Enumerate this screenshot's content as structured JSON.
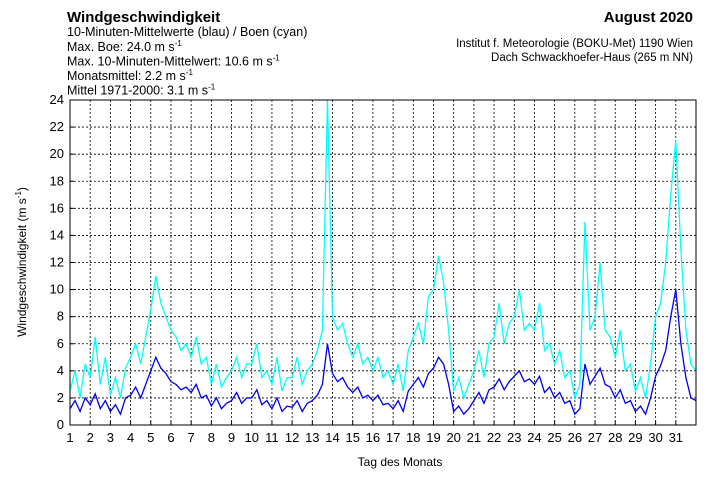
{
  "chart_data": {
    "type": "line",
    "title": "Windgeschwindigkeit",
    "subtitle": "10-Minuten-Mittelwerte (blau) / Boen (cyan)",
    "annotations": [
      {
        "text": "Max. Boe:  24.0 m s",
        "sup": "-1"
      },
      {
        "text": "Max. 10-Minuten-Mittelwert:  10.6 m s",
        "sup": "-1"
      },
      {
        "text": "Monatsmittel:   2.2 m s",
        "sup": "-1"
      },
      {
        "text": "Mittel 1971-2000:   3.1 m s",
        "sup": "-1"
      }
    ],
    "period": "August 2020",
    "source": [
      "Institut f. Meteorologie (BOKU-Met) 1190 Wien",
      "Dach Schwackhoefer-Haus (265 m NN)"
    ],
    "xlabel": "Tag des Monats",
    "ylabel": {
      "text": "Windgeschwindigkeit (m s",
      "sup": "-1",
      "end": ")"
    },
    "xlim": [
      1,
      32
    ],
    "xticks": [
      1,
      2,
      3,
      4,
      5,
      6,
      7,
      8,
      9,
      10,
      11,
      12,
      13,
      14,
      15,
      16,
      17,
      18,
      19,
      20,
      21,
      22,
      23,
      24,
      25,
      26,
      27,
      28,
      29,
      30,
      31
    ],
    "ylim": [
      0,
      24
    ],
    "yticks": [
      0,
      2,
      4,
      6,
      8,
      10,
      12,
      14,
      16,
      18,
      20,
      22,
      24
    ],
    "grid": true,
    "x": [
      1,
      1.25,
      1.5,
      1.75,
      2,
      2.25,
      2.5,
      2.75,
      3,
      3.25,
      3.5,
      3.75,
      4,
      4.25,
      4.5,
      4.75,
      5,
      5.25,
      5.5,
      5.75,
      6,
      6.25,
      6.5,
      6.75,
      7,
      7.25,
      7.5,
      7.75,
      8,
      8.25,
      8.5,
      8.75,
      9,
      9.25,
      9.5,
      9.75,
      10,
      10.25,
      10.5,
      10.75,
      11,
      11.25,
      11.5,
      11.75,
      12,
      12.25,
      12.5,
      12.75,
      13,
      13.25,
      13.5,
      13.75,
      14,
      14.25,
      14.5,
      14.75,
      15,
      15.25,
      15.5,
      15.75,
      16,
      16.25,
      16.5,
      16.75,
      17,
      17.25,
      17.5,
      17.75,
      18,
      18.25,
      18.5,
      18.75,
      19,
      19.25,
      19.5,
      19.75,
      20,
      20.25,
      20.5,
      20.75,
      21,
      21.25,
      21.5,
      21.75,
      22,
      22.25,
      22.5,
      22.75,
      23,
      23.25,
      23.5,
      23.75,
      24,
      24.25,
      24.5,
      24.75,
      25,
      25.25,
      25.5,
      25.75,
      26,
      26.25,
      26.5,
      26.75,
      27,
      27.25,
      27.5,
      27.75,
      28,
      28.25,
      28.5,
      28.75,
      29,
      29.25,
      29.5,
      29.75,
      30,
      30.25,
      30.5,
      30.75,
      31,
      31.25,
      31.5,
      31.75,
      32
    ],
    "series": [
      {
        "name": "Boen",
        "color": "#00ffff",
        "values": [
          2.5,
          4.0,
          2.0,
          4.5,
          3.5,
          6.5,
          3.0,
          5.0,
          2.2,
          3.5,
          2.0,
          4.2,
          5.0,
          6.0,
          4.5,
          6.5,
          8.5,
          11.0,
          9.0,
          8.0,
          7.0,
          6.5,
          5.5,
          6.0,
          5.0,
          6.5,
          4.5,
          5.0,
          3.0,
          4.5,
          2.8,
          3.5,
          4.0,
          5.0,
          3.5,
          4.5,
          4.5,
          6.0,
          3.5,
          4.0,
          3.0,
          5.0,
          2.5,
          3.5,
          3.5,
          5.0,
          3.0,
          4.0,
          4.5,
          5.5,
          7.0,
          24.0,
          8.0,
          7.0,
          7.5,
          6.0,
          5.0,
          6.0,
          4.5,
          5.0,
          4.0,
          5.0,
          3.5,
          4.0,
          3.0,
          4.5,
          2.5,
          5.5,
          6.5,
          7.5,
          6.0,
          9.5,
          10.0,
          12.5,
          10.5,
          7.0,
          2.5,
          3.5,
          2.0,
          3.0,
          4.0,
          5.5,
          3.5,
          6.0,
          6.5,
          9.0,
          6.0,
          7.5,
          8.0,
          10.0,
          7.0,
          7.5,
          7.0,
          9.0,
          5.5,
          6.0,
          4.5,
          5.5,
          3.5,
          4.0,
          2.0,
          3.0,
          15.0,
          7.0,
          8.0,
          12.0,
          7.0,
          6.5,
          5.0,
          7.0,
          4.0,
          4.5,
          2.5,
          3.5,
          2.0,
          4.5,
          8.0,
          9.0,
          12.0,
          17.0,
          21.0,
          13.0,
          7.0,
          4.5,
          4.0
        ]
      },
      {
        "name": "10-Minuten-Mittelwerte",
        "color": "#0000ee",
        "values": [
          1.2,
          1.8,
          1.0,
          2.0,
          1.5,
          2.3,
          1.2,
          1.8,
          1.0,
          1.5,
          0.8,
          2.0,
          2.2,
          2.8,
          2.0,
          3.0,
          4.0,
          5.0,
          4.2,
          3.8,
          3.2,
          3.0,
          2.6,
          2.8,
          2.4,
          3.0,
          2.0,
          2.2,
          1.4,
          2.0,
          1.2,
          1.6,
          1.8,
          2.4,
          1.6,
          2.0,
          2.0,
          2.6,
          1.5,
          1.8,
          1.2,
          2.0,
          1.0,
          1.4,
          1.3,
          1.8,
          1.0,
          1.6,
          1.8,
          2.2,
          3.0,
          6.0,
          3.8,
          3.2,
          3.5,
          2.8,
          2.4,
          2.8,
          2.0,
          2.2,
          1.8,
          2.2,
          1.5,
          1.6,
          1.2,
          1.8,
          1.0,
          2.5,
          3.0,
          3.5,
          2.8,
          3.8,
          4.2,
          5.0,
          4.5,
          3.0,
          1.0,
          1.4,
          0.8,
          1.2,
          1.8,
          2.4,
          1.6,
          2.6,
          2.8,
          3.4,
          2.6,
          3.2,
          3.6,
          4.0,
          3.2,
          3.4,
          3.0,
          3.6,
          2.4,
          2.8,
          2.0,
          2.4,
          1.6,
          1.8,
          0.8,
          1.2,
          4.5,
          3.0,
          3.6,
          4.2,
          3.0,
          2.8,
          2.0,
          2.6,
          1.6,
          1.8,
          1.0,
          1.4,
          0.8,
          2.0,
          3.6,
          4.4,
          5.5,
          8.0,
          10.0,
          6.0,
          3.5,
          2.0,
          1.8
        ]
      }
    ]
  }
}
